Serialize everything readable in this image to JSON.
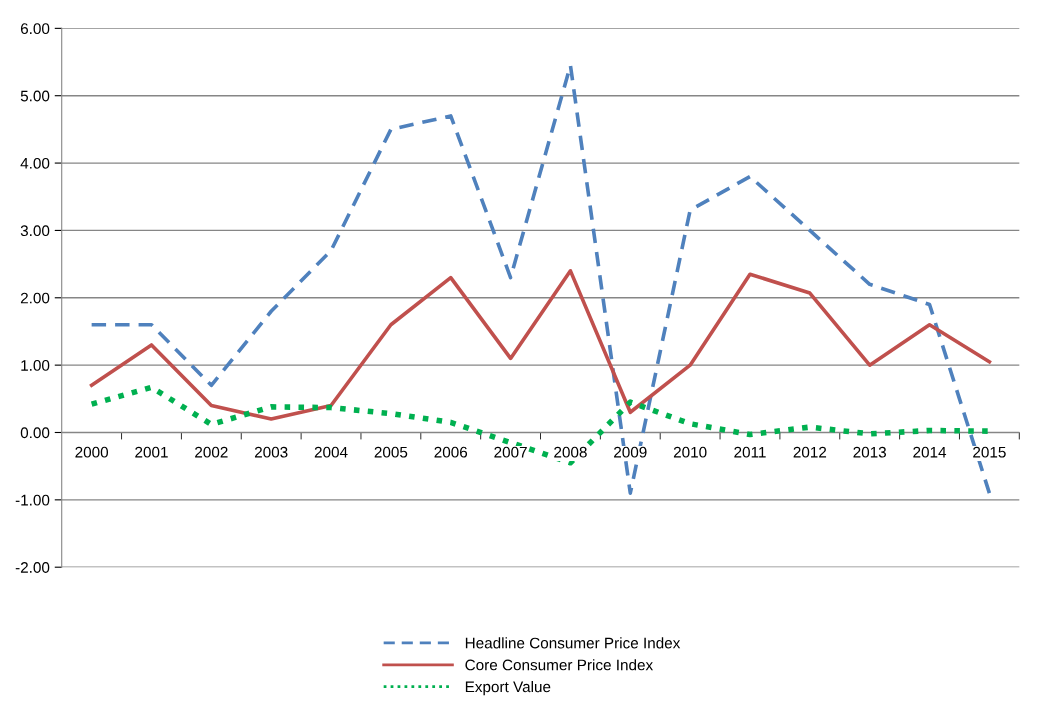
{
  "chart_data": {
    "type": "line",
    "categories": [
      "2000",
      "2001",
      "2002",
      "2003",
      "2004",
      "2005",
      "2006",
      "2007",
      "2008",
      "2009",
      "2010",
      "2011",
      "2012",
      "2013",
      "2014",
      "2015"
    ],
    "series": [
      {
        "name": "Headline Consumer Price Index",
        "color": "#4f81bd",
        "line_style": "dashed",
        "values": [
          1.6,
          1.6,
          0.7,
          1.8,
          2.7,
          4.5,
          4.7,
          2.3,
          5.45,
          -0.9,
          3.3,
          3.8,
          3.0,
          2.2,
          1.9,
          -0.9
        ]
      },
      {
        "name": "Core Consumer Price Index",
        "color": "#c0504d",
        "line_style": "solid",
        "values": [
          0.7,
          1.3,
          0.4,
          0.2,
          0.4,
          1.6,
          2.3,
          1.1,
          2.4,
          0.3,
          1.0,
          2.35,
          2.07,
          1.0,
          1.6,
          1.05
        ]
      },
      {
        "name": "Export Value",
        "color": "#00b050",
        "line_style": "dotted",
        "values": [
          0.42,
          0.67,
          0.12,
          0.38,
          0.37,
          0.28,
          0.15,
          -0.15,
          -0.45,
          0.45,
          0.13,
          -0.03,
          0.08,
          -0.02,
          0.03,
          0.02
        ]
      }
    ],
    "ylim": [
      -2,
      6
    ],
    "yticks": [
      {
        "value": -2,
        "label": "-2.00"
      },
      {
        "value": -1,
        "label": "-1.00"
      },
      {
        "value": 0,
        "label": "0.00"
      },
      {
        "value": 1,
        "label": "1.00"
      },
      {
        "value": 2,
        "label": "2.00"
      },
      {
        "value": 3,
        "label": "3.00"
      },
      {
        "value": 4,
        "label": "4.00"
      },
      {
        "value": 5,
        "label": "5.00"
      },
      {
        "value": 6,
        "label": "6.00"
      }
    ],
    "grid": "y",
    "legend": "bottom",
    "marker": "none"
  }
}
